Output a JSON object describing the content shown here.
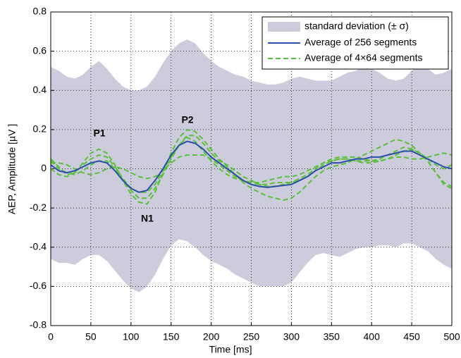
{
  "chart_data": {
    "type": "line",
    "xlabel": "Time  [ms]",
    "ylabel": "AEP, Amplitude [µV ]",
    "annotations": [
      "P1",
      "P2",
      "N1"
    ],
    "x": [
      0,
      10,
      20,
      30,
      40,
      50,
      60,
      70,
      80,
      90,
      100,
      110,
      120,
      130,
      140,
      150,
      160,
      170,
      180,
      190,
      200,
      210,
      220,
      230,
      240,
      250,
      260,
      270,
      280,
      290,
      300,
      310,
      320,
      330,
      340,
      350,
      360,
      370,
      380,
      390,
      400,
      410,
      420,
      430,
      440,
      450,
      460,
      470,
      480,
      490,
      500
    ],
    "xlim": [
      0,
      500
    ],
    "xticks": [
      0,
      50,
      100,
      150,
      200,
      250,
      300,
      350,
      400,
      450,
      500
    ],
    "ylim": [
      -0.8,
      0.8
    ],
    "yticks": [
      -0.8,
      -0.6,
      -0.4,
      -0.2,
      0,
      0.2,
      0.4,
      0.6,
      0.8
    ],
    "grid": true,
    "legend": "upper right",
    "series": [
      {
        "name": "standard deviation (± σ)",
        "color": "#ccccdc",
        "upper": [
          0.52,
          0.5,
          0.47,
          0.46,
          0.48,
          0.52,
          0.55,
          0.51,
          0.46,
          0.42,
          0.4,
          0.4,
          0.42,
          0.47,
          0.54,
          0.6,
          0.64,
          0.66,
          0.64,
          0.59,
          0.55,
          0.52,
          0.5,
          0.48,
          0.47,
          0.45,
          0.44,
          0.43,
          0.43,
          0.44,
          0.46,
          0.47,
          0.46,
          0.45,
          0.45,
          0.45,
          0.47,
          0.49,
          0.5,
          0.52,
          0.51,
          0.49,
          0.46,
          0.45,
          0.46,
          0.5,
          0.53,
          0.51,
          0.48,
          0.49,
          0.51
        ],
        "lower": [
          -0.46,
          -0.48,
          -0.48,
          -0.49,
          -0.46,
          -0.44,
          -0.44,
          -0.47,
          -0.52,
          -0.57,
          -0.61,
          -0.63,
          -0.6,
          -0.54,
          -0.46,
          -0.39,
          -0.36,
          -0.37,
          -0.4,
          -0.44,
          -0.47,
          -0.49,
          -0.51,
          -0.54,
          -0.56,
          -0.58,
          -0.6,
          -0.6,
          -0.6,
          -0.6,
          -0.58,
          -0.53,
          -0.48,
          -0.44,
          -0.43,
          -0.44,
          -0.45,
          -0.43,
          -0.41,
          -0.4,
          -0.4,
          -0.39,
          -0.39,
          -0.4,
          -0.38,
          -0.38,
          -0.4,
          -0.42,
          -0.46,
          -0.49,
          -0.51
        ]
      },
      {
        "name": "Average of 256 segments",
        "color": "#2b4fa8",
        "values": [
          0.02,
          -0.01,
          -0.02,
          -0.01,
          0.01,
          0.03,
          0.04,
          0.03,
          -0.01,
          -0.06,
          -0.1,
          -0.12,
          -0.11,
          -0.06,
          0.0,
          0.07,
          0.12,
          0.14,
          0.13,
          0.1,
          0.06,
          0.03,
          0.0,
          -0.03,
          -0.06,
          -0.08,
          -0.09,
          -0.095,
          -0.09,
          -0.085,
          -0.08,
          -0.06,
          -0.04,
          -0.01,
          0.01,
          0.03,
          0.03,
          0.04,
          0.05,
          0.05,
          0.06,
          0.06,
          0.07,
          0.08,
          0.09,
          0.09,
          0.07,
          0.05,
          0.03,
          0.01,
          0.0
        ]
      },
      {
        "name": "Average of 4×64 segments",
        "color": "#5cbf3c",
        "values": [
          [
            0.05,
            0.01,
            -0.03,
            -0.02,
            0.03,
            0.08,
            0.1,
            0.08,
            0.02,
            -0.06,
            -0.13,
            -0.17,
            -0.18,
            -0.12,
            -0.02,
            0.08,
            0.16,
            0.2,
            0.19,
            0.15,
            0.1,
            0.05,
            0.01,
            -0.03,
            -0.07,
            -0.1,
            -0.12,
            -0.14,
            -0.15,
            -0.16,
            -0.15,
            -0.12,
            -0.08,
            -0.04,
            -0.01,
            0.01,
            0.02,
            0.03,
            0.05,
            0.07,
            0.09,
            0.11,
            0.13,
            0.15,
            0.14,
            0.12,
            0.08,
            0.04,
            -0.02,
            -0.07,
            -0.09
          ],
          [
            0.03,
            0.03,
            0.02,
            0.0,
            -0.02,
            -0.03,
            -0.02,
            0.0,
            0.01,
            0.0,
            -0.02,
            -0.04,
            -0.05,
            -0.04,
            -0.01,
            0.03,
            0.06,
            0.07,
            0.07,
            0.07,
            0.05,
            0.02,
            -0.01,
            -0.04,
            -0.06,
            -0.07,
            -0.07,
            -0.06,
            -0.05,
            -0.04,
            -0.04,
            -0.03,
            -0.01,
            0.01,
            0.03,
            0.04,
            0.05,
            0.05,
            0.04,
            0.03,
            0.03,
            0.04,
            0.05,
            0.06,
            0.06,
            0.05,
            0.05,
            0.06,
            0.07,
            0.08,
            0.07
          ],
          [
            0.0,
            -0.03,
            -0.04,
            -0.02,
            0.02,
            0.05,
            0.07,
            0.06,
            0.01,
            -0.05,
            -0.1,
            -0.12,
            -0.12,
            -0.08,
            -0.01,
            0.06,
            0.12,
            0.17,
            0.17,
            0.13,
            0.08,
            0.04,
            0.02,
            -0.01,
            -0.04,
            -0.06,
            -0.08,
            -0.09,
            -0.09,
            -0.08,
            -0.07,
            -0.05,
            -0.03,
            0.0,
            0.03,
            0.05,
            0.06,
            0.06,
            0.06,
            0.05,
            0.04,
            0.04,
            0.05,
            0.07,
            0.09,
            0.1,
            0.08,
            0.04,
            -0.02,
            -0.08,
            -0.1
          ],
          [
            0.04,
            0.0,
            -0.02,
            -0.03,
            -0.01,
            0.02,
            0.04,
            0.04,
            0.0,
            -0.06,
            -0.11,
            -0.15,
            -0.15,
            -0.1,
            -0.03,
            0.05,
            0.12,
            0.16,
            0.14,
            0.09,
            0.04,
            0.0,
            -0.03,
            -0.05,
            -0.06,
            -0.07,
            -0.08,
            -0.08,
            -0.07,
            -0.07,
            -0.07,
            -0.06,
            -0.04,
            -0.01,
            0.02,
            0.04,
            0.05,
            0.05,
            0.04,
            0.04,
            0.04,
            0.05,
            0.07,
            0.09,
            0.11,
            0.1,
            0.08,
            0.05,
            0.02,
            0.0,
            0.02
          ]
        ]
      }
    ]
  }
}
